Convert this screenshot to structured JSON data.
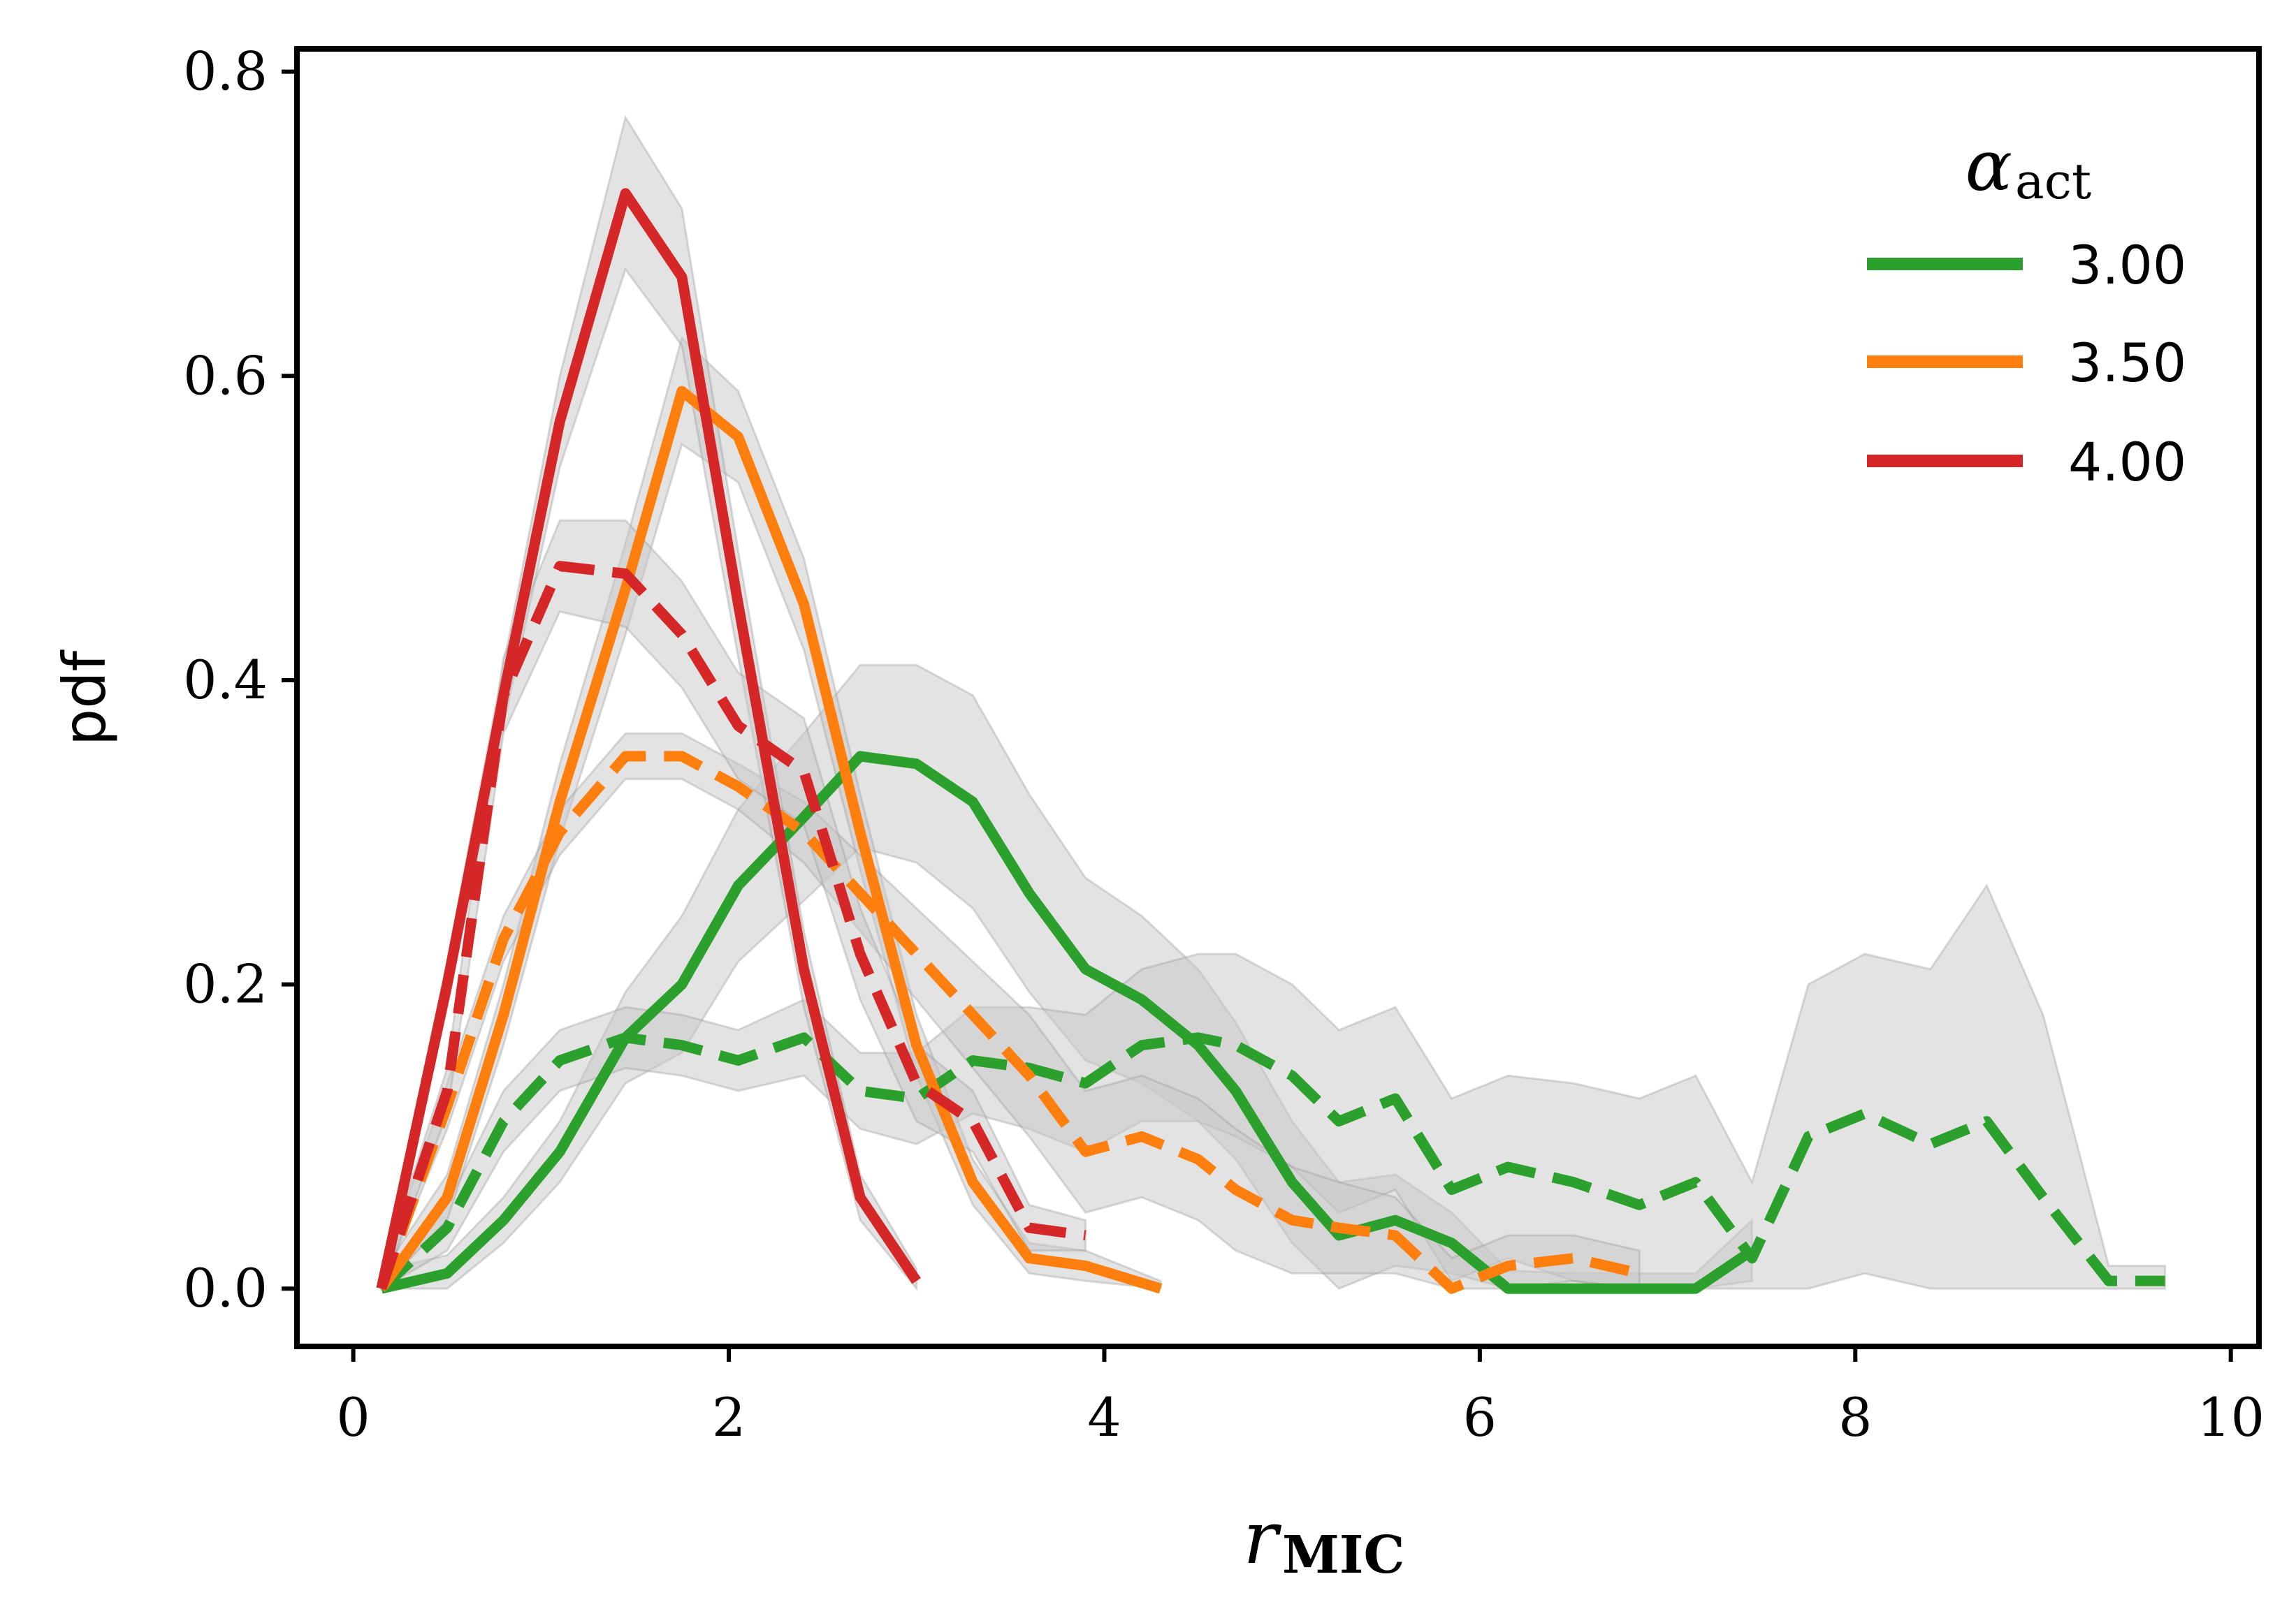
{
  "chart_data": {
    "type": "line",
    "title": "",
    "xlabel_main": "r",
    "xlabel_sub": "MIC",
    "ylabel": "pdf",
    "xlim": [
      -0.3,
      10.15
    ],
    "ylim": [
      -0.038,
      0.815
    ],
    "xticks": [
      0,
      2,
      4,
      6,
      8,
      10
    ],
    "yticks": [
      0.0,
      0.2,
      0.4,
      0.6,
      0.8
    ],
    "xtick_labels": [
      "0",
      "2",
      "4",
      "6",
      "8",
      "10"
    ],
    "ytick_labels": [
      "0.0",
      "0.2",
      "0.4",
      "0.6",
      "0.8"
    ],
    "grid": false,
    "legend": {
      "title_main": "α",
      "title_sub": "act",
      "position": "top-right",
      "entries": [
        {
          "label": "3.00",
          "color": "#2ca02c"
        },
        {
          "label": "3.50",
          "color": "#ff7f0e"
        },
        {
          "label": "4.00",
          "color": "#d62728"
        }
      ]
    },
    "band_color": "#c8c8c8",
    "series": [
      {
        "name": "3.00 solid",
        "color": "#2ca02c",
        "dash": false,
        "x": [
          0.15,
          0.5,
          0.8,
          1.1,
          1.45,
          1.75,
          2.05,
          2.4,
          2.7,
          3.0,
          3.3,
          3.6,
          3.9,
          4.2,
          4.5,
          4.7,
          5.0,
          5.25,
          5.55,
          5.85,
          6.15,
          6.5,
          6.85,
          7.15,
          7.45
        ],
        "y": [
          0.0,
          0.01,
          0.045,
          0.09,
          0.165,
          0.2,
          0.265,
          0.31,
          0.35,
          0.345,
          0.32,
          0.26,
          0.21,
          0.19,
          0.16,
          0.13,
          0.07,
          0.035,
          0.045,
          0.03,
          0.0,
          0.0,
          0.0,
          0.0,
          0.025
        ],
        "band": [
          0.012,
          0.012,
          0.015,
          0.02,
          0.03,
          0.045,
          0.05,
          0.055,
          0.06,
          0.065,
          0.07,
          0.065,
          0.06,
          0.055,
          0.05,
          0.045,
          0.04,
          0.035,
          0.03,
          0.02,
          0.012,
          0.01,
          0.01,
          0.01,
          0.02
        ]
      },
      {
        "name": "3.00 dashed",
        "color": "#2ca02c",
        "dash": true,
        "x": [
          0.15,
          0.5,
          0.8,
          1.1,
          1.45,
          1.75,
          2.05,
          2.4,
          2.7,
          3.0,
          3.3,
          3.6,
          3.9,
          4.2,
          4.5,
          4.7,
          5.0,
          5.25,
          5.55,
          5.85,
          6.15,
          6.5,
          6.85,
          7.15,
          7.45,
          7.75,
          8.05,
          8.4,
          8.7,
          9.0,
          9.35,
          9.65
        ],
        "y": [
          0.0,
          0.04,
          0.11,
          0.15,
          0.165,
          0.16,
          0.15,
          0.165,
          0.13,
          0.125,
          0.15,
          0.145,
          0.135,
          0.16,
          0.165,
          0.16,
          0.14,
          0.11,
          0.125,
          0.065,
          0.08,
          0.07,
          0.055,
          0.07,
          0.02,
          0.1,
          0.115,
          0.095,
          0.11,
          0.06,
          0.005,
          0.005
        ],
        "band": [
          0.01,
          0.015,
          0.02,
          0.02,
          0.02,
          0.02,
          0.02,
          0.025,
          0.025,
          0.03,
          0.035,
          0.04,
          0.045,
          0.05,
          0.055,
          0.06,
          0.06,
          0.06,
          0.06,
          0.06,
          0.06,
          0.065,
          0.07,
          0.07,
          0.05,
          0.1,
          0.105,
          0.115,
          0.155,
          0.12,
          0.01,
          0.01
        ]
      },
      {
        "name": "3.50 solid",
        "color": "#ff7f0e",
        "dash": false,
        "x": [
          0.15,
          0.5,
          0.8,
          1.1,
          1.45,
          1.75,
          2.05,
          2.4,
          2.7,
          3.0,
          3.3,
          3.6,
          3.9,
          4.3
        ],
        "y": [
          0.0,
          0.06,
          0.18,
          0.32,
          0.46,
          0.59,
          0.56,
          0.45,
          0.3,
          0.16,
          0.07,
          0.02,
          0.015,
          0.0
        ],
        "band": [
          0.01,
          0.015,
          0.02,
          0.025,
          0.03,
          0.035,
          0.03,
          0.03,
          0.025,
          0.02,
          0.015,
          0.01,
          0.01,
          0.005
        ]
      },
      {
        "name": "3.50 dashed",
        "color": "#ff7f0e",
        "dash": true,
        "x": [
          0.15,
          0.5,
          0.8,
          1.1,
          1.45,
          1.75,
          2.05,
          2.4,
          2.7,
          3.0,
          3.3,
          3.6,
          3.9,
          4.2,
          4.5,
          4.7,
          5.0,
          5.25,
          5.55,
          5.85,
          6.15,
          6.5,
          6.85
        ],
        "y": [
          0.0,
          0.12,
          0.23,
          0.3,
          0.35,
          0.35,
          0.33,
          0.3,
          0.26,
          0.22,
          0.18,
          0.14,
          0.09,
          0.1,
          0.085,
          0.065,
          0.045,
          0.04,
          0.035,
          0.0,
          0.015,
          0.02,
          0.01
        ],
        "band": [
          0.01,
          0.015,
          0.015,
          0.015,
          0.015,
          0.015,
          0.015,
          0.02,
          0.025,
          0.03,
          0.035,
          0.04,
          0.04,
          0.04,
          0.04,
          0.04,
          0.035,
          0.03,
          0.025,
          0.02,
          0.02,
          0.015,
          0.015
        ]
      },
      {
        "name": "4.00 solid",
        "color": "#d62728",
        "dash": false,
        "x": [
          0.15,
          0.5,
          0.8,
          1.1,
          1.45,
          1.75,
          2.05,
          2.4,
          2.7,
          3.0
        ],
        "y": [
          0.0,
          0.2,
          0.39,
          0.57,
          0.72,
          0.665,
          0.45,
          0.21,
          0.06,
          0.005
        ],
        "band": [
          0.01,
          0.015,
          0.02,
          0.03,
          0.05,
          0.045,
          0.035,
          0.025,
          0.015,
          0.008
        ]
      },
      {
        "name": "4.00 dashed",
        "color": "#d62728",
        "dash": true,
        "x": [
          0.15,
          0.5,
          0.8,
          1.1,
          1.45,
          1.75,
          2.05,
          2.4,
          2.7,
          3.0,
          3.3,
          3.6,
          3.9
        ],
        "y": [
          0.0,
          0.13,
          0.39,
          0.475,
          0.47,
          0.43,
          0.37,
          0.34,
          0.22,
          0.135,
          0.11,
          0.04,
          0.035
        ],
        "band": [
          0.01,
          0.015,
          0.025,
          0.03,
          0.035,
          0.035,
          0.035,
          0.035,
          0.03,
          0.025,
          0.02,
          0.015,
          0.01
        ]
      }
    ]
  }
}
